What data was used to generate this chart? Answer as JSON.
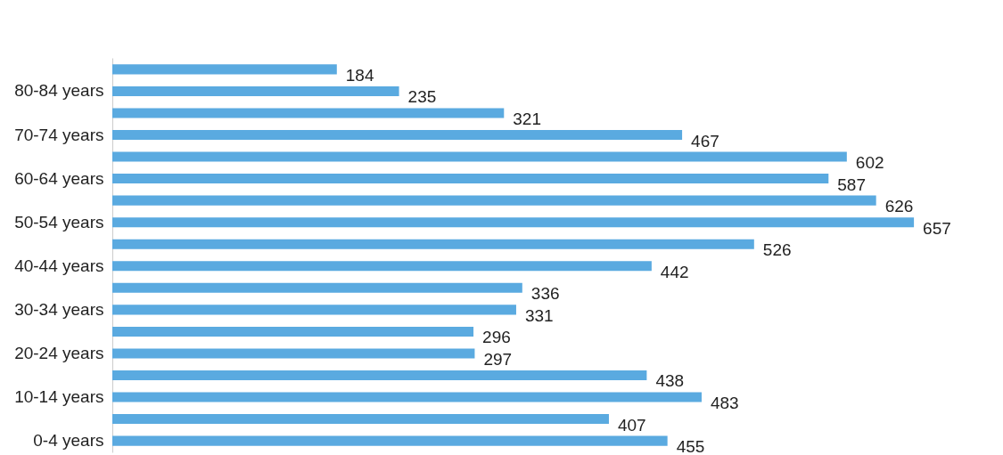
{
  "chart_data": {
    "type": "bar",
    "orientation": "horizontal",
    "categories": [
      null,
      "80-84 years",
      null,
      "70-74 years",
      null,
      "60-64 years",
      null,
      "50-54 years",
      null,
      "40-44 years",
      null,
      "30-34 years",
      null,
      "20-24 years",
      null,
      "10-14 years",
      null,
      "0-4 years"
    ],
    "values": [
      184,
      235,
      321,
      467,
      602,
      587,
      626,
      657,
      526,
      442,
      336,
      331,
      296,
      297,
      438,
      483,
      407,
      455
    ],
    "color": "#5aaae0",
    "data_labels": true,
    "grid": false
  }
}
